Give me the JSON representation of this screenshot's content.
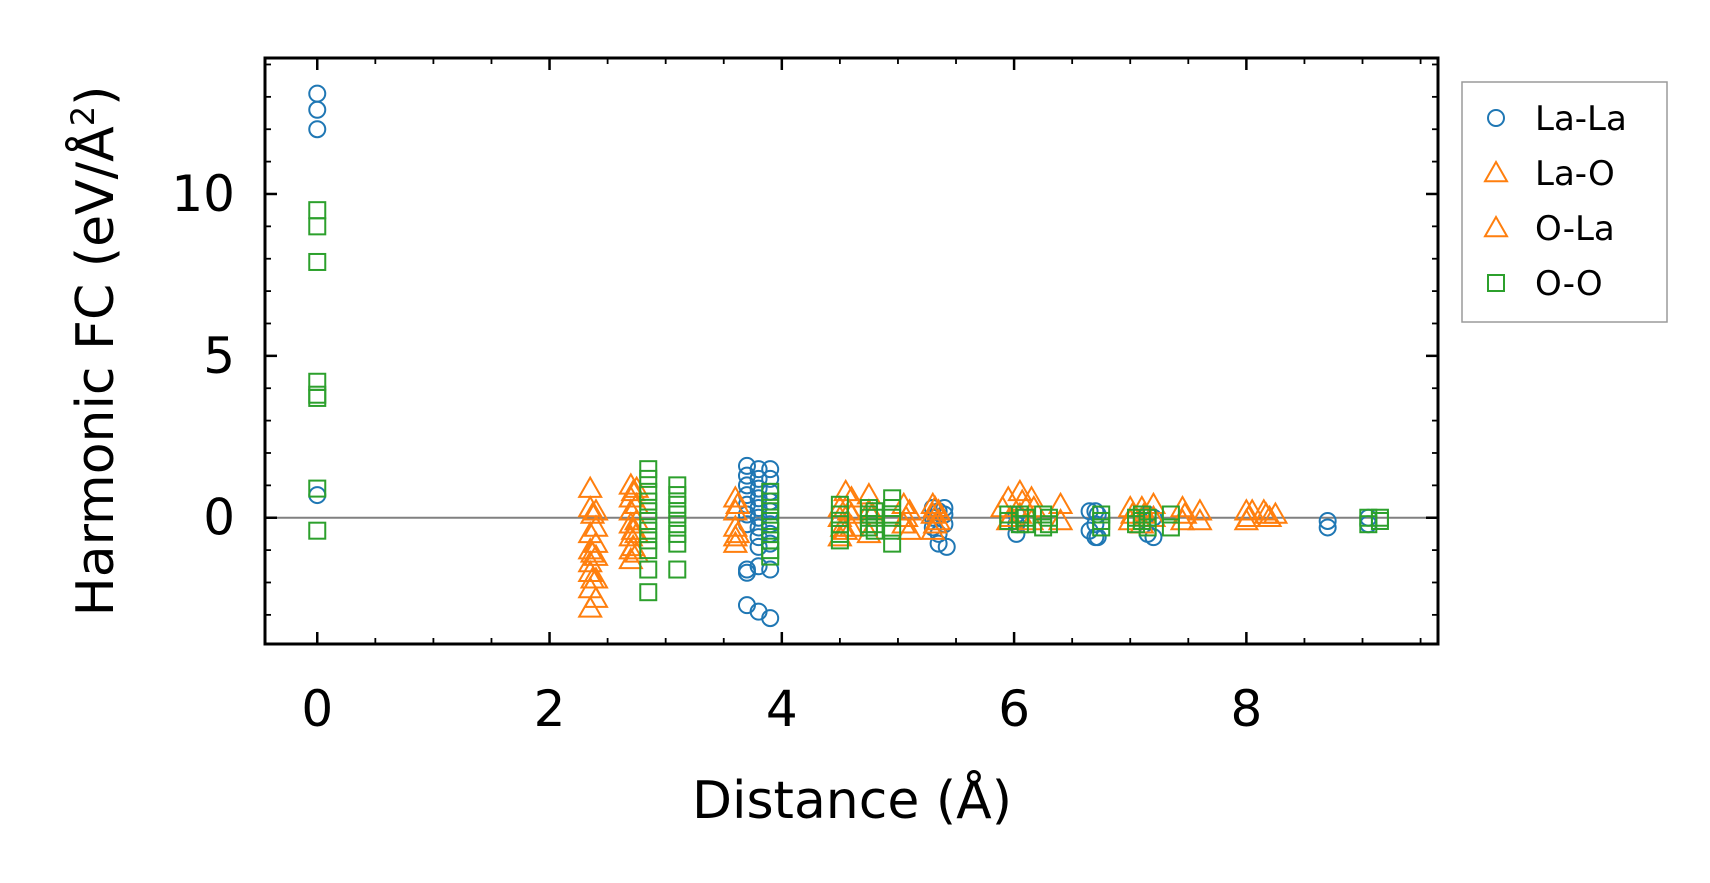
{
  "chart_data": {
    "type": "scatter",
    "title": "",
    "xlabel": "Distance (Å)",
    "ylabel": "Harmonic FC (eV/Å²)",
    "ylabel_base": "Harmonic FC (eV/Å",
    "ylabel_sup": "2",
    "ylabel_end": ")",
    "xlim": [
      -0.45,
      9.65
    ],
    "ylim": [
      -3.9,
      14.2
    ],
    "xticks": [
      0,
      2,
      4,
      6,
      8
    ],
    "xtick_labels": [
      "0",
      "2",
      "4",
      "6",
      "8"
    ],
    "yticks": [
      0,
      5,
      10
    ],
    "ytick_labels": [
      "0",
      "5",
      "10"
    ],
    "reference_line_y": 0,
    "grid": false,
    "legend_position": "outside-top-right",
    "series": [
      {
        "name": "La-La",
        "marker": "circle",
        "color": "#1f77b4",
        "x": [
          0,
          0,
          0,
          0,
          3.7,
          3.7,
          3.7,
          3.7,
          3.7,
          3.7,
          3.7,
          3.7,
          3.7,
          3.8,
          3.8,
          3.8,
          3.8,
          3.8,
          3.8,
          3.8,
          3.8,
          3.8,
          3.8,
          3.9,
          3.9,
          3.9,
          3.9,
          3.9,
          3.9,
          3.9,
          3.9,
          3.9,
          3.7,
          3.8,
          3.9,
          5.3,
          5.3,
          5.3,
          5.35,
          5.35,
          5.35,
          5.4,
          5.4,
          5.4,
          5.42,
          6.02,
          6.02,
          6.02,
          6.65,
          6.65,
          6.7,
          6.7,
          6.7,
          6.72,
          6.72,
          7.15,
          7.15,
          7.2,
          7.2,
          8.7,
          8.7,
          9.05,
          9.05
        ],
        "y": [
          13.1,
          12.6,
          12.0,
          0.7,
          1.6,
          1.3,
          1.0,
          0.7,
          0.4,
          0.1,
          -0.2,
          -1.6,
          -1.7,
          1.5,
          1.2,
          0.9,
          0.6,
          0.3,
          0.0,
          -0.3,
          -0.6,
          -0.9,
          -1.5,
          1.5,
          1.2,
          0.8,
          0.5,
          0.2,
          -0.2,
          -0.5,
          -0.8,
          -1.6,
          -2.7,
          -2.9,
          -3.1,
          0.3,
          0.0,
          -0.3,
          0.2,
          -0.5,
          -0.8,
          0.3,
          0.1,
          -0.2,
          -0.9,
          0.1,
          -0.2,
          -0.5,
          0.2,
          -0.4,
          0.2,
          -0.2,
          -0.6,
          0.1,
          -0.6,
          0.1,
          -0.5,
          0.0,
          -0.6,
          -0.1,
          -0.3,
          0.0,
          -0.2
        ]
      },
      {
        "name": "La-O",
        "marker": "triangle",
        "color": "#ff7f0e",
        "x": [
          2.35,
          2.35,
          2.35,
          2.35,
          2.35,
          2.35,
          2.35,
          2.35,
          2.4,
          2.4,
          2.4,
          2.4,
          2.4,
          2.4,
          2.7,
          2.7,
          2.7,
          2.7,
          2.7,
          2.7,
          2.7,
          2.75,
          2.75,
          2.75,
          2.75,
          2.75,
          3.6,
          3.6,
          3.6,
          3.6,
          3.6,
          4.5,
          4.5,
          4.5,
          4.55,
          4.55,
          4.6,
          4.6,
          4.6,
          4.75,
          4.75,
          4.75,
          5.05,
          5.05,
          5.1,
          5.1,
          5.3,
          5.3,
          5.3,
          5.35,
          5.35,
          5.9,
          5.95,
          5.95,
          6.05,
          6.05,
          6.15,
          6.15,
          6.4,
          6.4,
          7.0,
          7.0,
          7.1,
          7.1,
          7.2,
          7.2,
          7.45,
          7.45,
          7.6,
          7.6,
          8.0,
          8.0,
          8.05,
          8.15,
          8.2,
          8.25
        ],
        "y": [
          0.9,
          0.3,
          -0.5,
          -1.0,
          -1.4,
          -1.7,
          -2.2,
          -2.8,
          0.2,
          -0.3,
          -0.8,
          -1.2,
          -1.9,
          -2.5,
          1.0,
          0.6,
          0.2,
          -0.2,
          -0.6,
          -1.0,
          -1.3,
          0.9,
          0.4,
          -0.1,
          -0.5,
          -1.1,
          0.6,
          0.2,
          -0.3,
          -0.6,
          -0.8,
          0.3,
          0.0,
          -0.6,
          0.8,
          -0.4,
          0.6,
          0.1,
          -0.3,
          0.7,
          0.2,
          -0.5,
          0.4,
          -0.2,
          0.2,
          -0.4,
          0.4,
          0.1,
          -0.4,
          0.2,
          -0.1,
          0.3,
          0.6,
          -0.1,
          0.8,
          0.1,
          0.6,
          -0.1,
          0.4,
          -0.1,
          0.3,
          -0.1,
          0.3,
          -0.2,
          0.4,
          0.0,
          0.3,
          -0.1,
          0.2,
          -0.1,
          0.2,
          -0.1,
          0.2,
          0.2,
          0.0,
          0.1
        ]
      },
      {
        "name": "O-La",
        "marker": "triangle",
        "color": "#ff7f0e",
        "x": [
          2.37,
          2.37,
          2.37,
          2.72,
          2.72,
          2.72,
          3.62,
          3.62,
          4.52,
          4.58,
          4.78,
          5.07,
          5.32,
          5.32,
          5.97,
          6.07,
          6.17,
          7.02,
          7.12,
          7.47,
          8.02,
          8.17
        ],
        "y": [
          0.1,
          -1.1,
          -1.9,
          0.8,
          -0.4,
          -0.9,
          0.4,
          -0.5,
          -0.3,
          0.2,
          0.1,
          0.0,
          0.3,
          -0.2,
          0.0,
          0.5,
          0.3,
          0.1,
          0.1,
          0.1,
          0.0,
          0.1
        ]
      },
      {
        "name": "O-O",
        "marker": "square",
        "color": "#2ca02c",
        "x": [
          0,
          0,
          0,
          0,
          0,
          0,
          0,
          0,
          2.85,
          2.85,
          2.85,
          2.85,
          2.85,
          2.85,
          2.85,
          2.85,
          2.85,
          2.85,
          2.85,
          3.1,
          3.1,
          3.1,
          3.1,
          3.1,
          3.1,
          3.1,
          3.1,
          3.9,
          3.9,
          3.9,
          3.9,
          3.9,
          3.9,
          3.9,
          3.9,
          4.5,
          4.5,
          4.5,
          4.5,
          4.5,
          4.75,
          4.75,
          4.75,
          4.75,
          4.75,
          4.8,
          4.8,
          4.8,
          4.8,
          4.95,
          4.95,
          4.95,
          4.95,
          4.95,
          5.95,
          5.95,
          6.05,
          6.05,
          6.1,
          6.1,
          6.25,
          6.25,
          6.3,
          6.3,
          6.75,
          6.75,
          6.75,
          7.05,
          7.05,
          7.1,
          7.1,
          7.15,
          7.15,
          7.35,
          7.35,
          9.05,
          9.05,
          9.15,
          9.15
        ],
        "y": [
          9.5,
          9.0,
          7.9,
          4.2,
          3.8,
          3.7,
          0.9,
          -0.4,
          1.5,
          1.2,
          0.8,
          0.5,
          0.2,
          -0.1,
          -0.4,
          -0.7,
          -1.0,
          -1.6,
          -2.3,
          1.0,
          0.7,
          0.4,
          0.1,
          -0.2,
          -0.5,
          -0.8,
          -1.6,
          0.8,
          0.5,
          0.2,
          -0.1,
          -0.4,
          -0.7,
          -1.0,
          -1.2,
          0.4,
          0.1,
          -0.2,
          -0.5,
          -0.7,
          0.3,
          0.0,
          -0.3,
          0.1,
          -0.2,
          0.2,
          0.0,
          -0.2,
          -0.4,
          0.6,
          0.3,
          0.0,
          -0.4,
          -0.8,
          0.1,
          -0.1,
          0.1,
          -0.2,
          0.0,
          -0.2,
          0.1,
          -0.3,
          0.0,
          -0.2,
          0.1,
          -0.1,
          -0.3,
          0.0,
          -0.2,
          0.1,
          -0.1,
          0.0,
          -0.3,
          0.1,
          -0.3,
          0.0,
          -0.2,
          0.0,
          -0.1
        ]
      }
    ]
  }
}
